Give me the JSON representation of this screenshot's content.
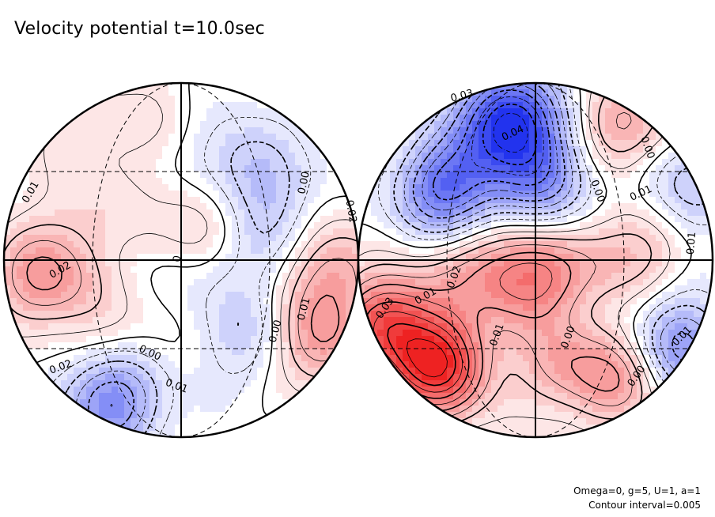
{
  "title": "Velocity potential t=10.0sec",
  "footer": {
    "params": "Omega=0, g=5, U=1, a=1",
    "interval": "Contour interval=0.005"
  },
  "colors": {
    "positive": "#ee2222",
    "negative": "#2233ee",
    "zero": "#ffffff",
    "contour": "#000000"
  },
  "chart_data": {
    "type": "heatmap",
    "projection": "orthographic, two hemispheres",
    "contour_interval": 0.005,
    "color_scale": {
      "min": -0.045,
      "max": 0.045,
      "negative_color": "blue",
      "positive_color": "red"
    },
    "hemispheres": [
      {
        "name": "left",
        "centers": [
          {
            "x": -0.78,
            "y": -0.1,
            "value": 0.021
          },
          {
            "x": -0.55,
            "y": 0.75,
            "value": 0.007
          },
          {
            "x": -0.15,
            "y": 0.8,
            "value": 0.004
          },
          {
            "x": 0.3,
            "y": 0.55,
            "value": -0.011
          },
          {
            "x": 0.55,
            "y": 0.4,
            "value": -0.006
          },
          {
            "x": 0.87,
            "y": -0.05,
            "value": 0.017
          },
          {
            "x": 0.75,
            "y": -0.45,
            "value": 0.022
          },
          {
            "x": 0.43,
            "y": -0.45,
            "value": -0.012
          },
          {
            "x": -0.4,
            "y": -0.8,
            "value": -0.026
          },
          {
            "x": 0.1,
            "y": -0.05,
            "value": -0.004
          },
          {
            "x": 0.45,
            "y": 0.02,
            "value": -0.006
          },
          {
            "x": -0.1,
            "y": 0.2,
            "value": 0.003
          },
          {
            "x": 0.15,
            "y": 0.22,
            "value": 0.009
          },
          {
            "x": 0.5,
            "y": 0.25,
            "value": -0.004
          },
          {
            "x": -0.55,
            "y": 0.25,
            "value": 0.006
          },
          {
            "x": -0.4,
            "y": -0.4,
            "value": 0.006
          }
        ],
        "labels": [
          {
            "text": "0.01",
            "value": 0.01
          },
          {
            "text": "0.02",
            "value": 0.02
          },
          {
            "text": "0.00",
            "value": 0.0
          },
          {
            "text": "0.02",
            "value": 0.02
          },
          {
            "text": "0.01",
            "value": 0.01
          },
          {
            "text": "0.00",
            "value": 0.0
          },
          {
            "text": "0.00",
            "value": 0.0
          },
          {
            "text": "0.01",
            "value": -0.01
          },
          {
            "text": "0.02",
            "value": -0.02
          },
          {
            "text": "0",
            "value": 0.0
          }
        ]
      },
      {
        "name": "right",
        "centers": [
          {
            "x": -0.15,
            "y": 0.78,
            "value": -0.045
          },
          {
            "x": -0.5,
            "y": 0.4,
            "value": -0.032
          },
          {
            "x": 0.05,
            "y": 0.45,
            "value": -0.022
          },
          {
            "x": 0.5,
            "y": 0.75,
            "value": 0.018
          },
          {
            "x": 0.82,
            "y": 0.4,
            "value": -0.015
          },
          {
            "x": 0.6,
            "y": 0.1,
            "value": 0.012
          },
          {
            "x": -0.05,
            "y": -0.1,
            "value": 0.025
          },
          {
            "x": -0.55,
            "y": -0.6,
            "value": 0.042
          },
          {
            "x": -0.85,
            "y": -0.35,
            "value": 0.032
          },
          {
            "x": 0.15,
            "y": -0.6,
            "value": 0.014
          },
          {
            "x": 0.4,
            "y": -0.35,
            "value": -0.001
          },
          {
            "x": 0.5,
            "y": -0.65,
            "value": 0.02
          },
          {
            "x": 0.8,
            "y": -0.5,
            "value": -0.025
          },
          {
            "x": 0.3,
            "y": -0.05,
            "value": 0.008
          },
          {
            "x": -0.4,
            "y": -0.05,
            "value": 0.012
          }
        ],
        "labels": [
          {
            "text": "0.03",
            "value": -0.03
          },
          {
            "text": "0.04",
            "value": -0.04
          },
          {
            "text": "0.00",
            "value": 0.0
          },
          {
            "text": "0.00",
            "value": 0.0
          },
          {
            "text": "0.01",
            "value": 0.01
          },
          {
            "text": "0.01",
            "value": 0.01
          },
          {
            "text": "0.01",
            "value": 0.01
          },
          {
            "text": "0.02",
            "value": 0.02
          },
          {
            "text": "0.03",
            "value": 0.03
          },
          {
            "text": "0.01",
            "value": 0.01
          },
          {
            "text": "0.00",
            "value": 0.0
          },
          {
            "text": "0.00",
            "value": 0.0
          },
          {
            "text": "0.01",
            "value": -0.01
          }
        ]
      }
    ]
  }
}
